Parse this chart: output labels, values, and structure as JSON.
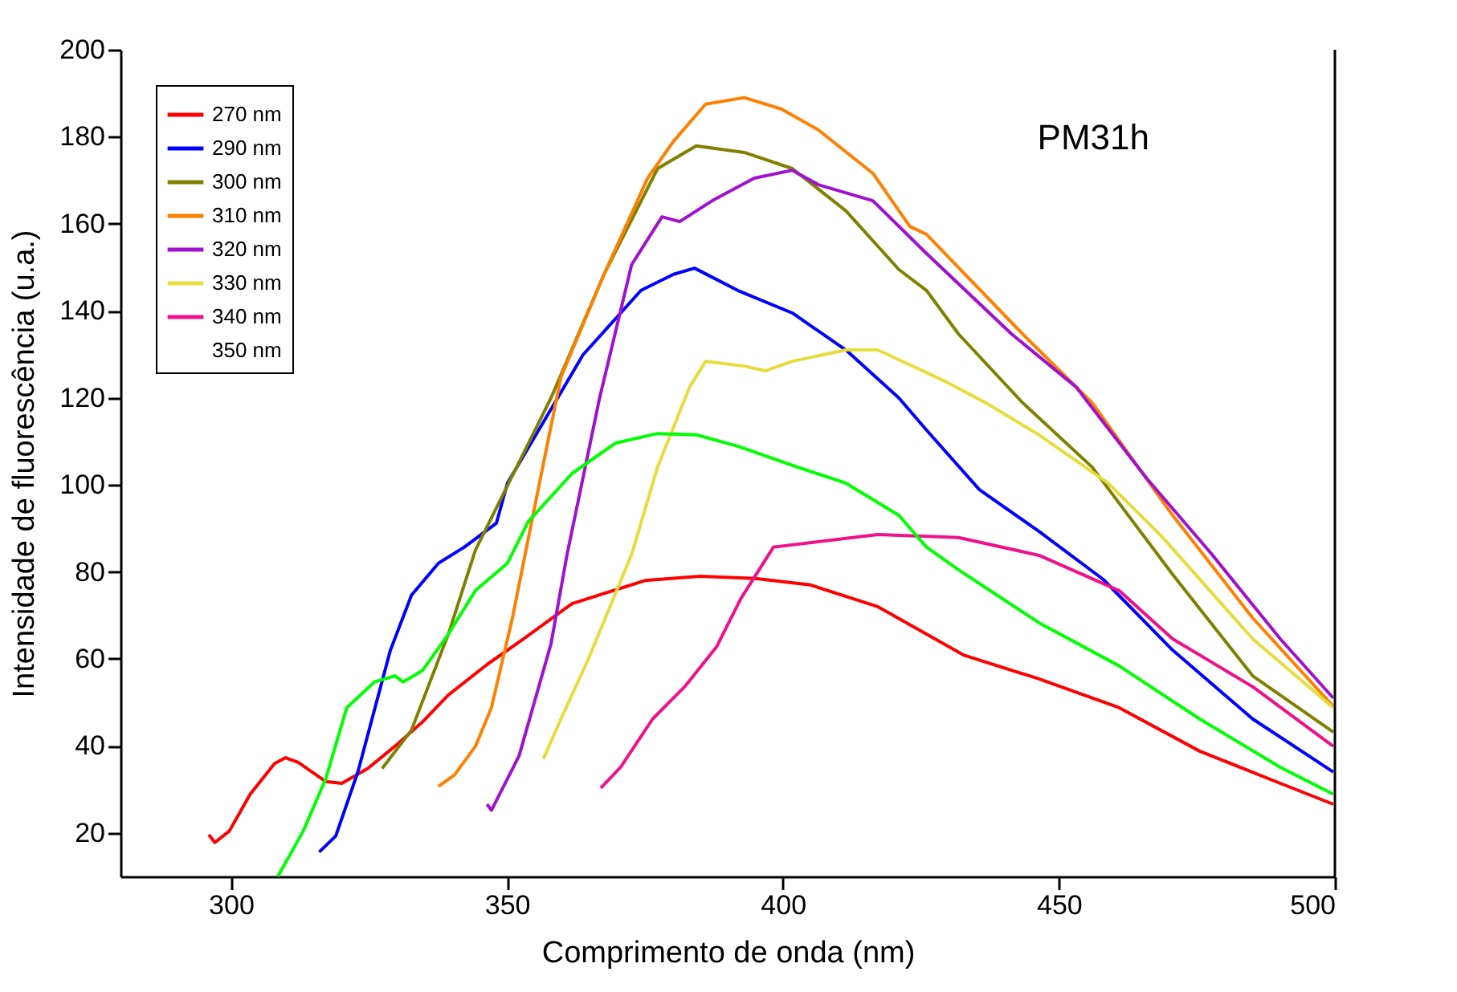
{
  "chart_data": {
    "type": "line",
    "xlabel": "Comprimento de onda (nm)",
    "ylabel": "Intensidade de fluorescência (u.a.)",
    "xlim": [
      280,
      500
    ],
    "xticks": [
      300,
      350,
      400,
      450,
      500
    ],
    "ylim": [
      10,
      200
    ],
    "yticks": [
      20,
      40,
      60,
      80,
      100,
      120,
      140,
      160,
      180,
      200
    ],
    "grid": false,
    "legend": "top left",
    "marker": "none",
    "line_style": "solid",
    "annotations": [
      "PM31h"
    ],
    "series": [
      {
        "name": "270 nm",
        "color": "#ff0000",
        "x": [
          296,
          297.1,
          299.7,
          303.5,
          307.9,
          309.9,
          312.2,
          317.2,
          320.1,
          324.8,
          329.7,
          334.7,
          339.4,
          346.4,
          353,
          361.8,
          375,
          385,
          395,
          405,
          417.2,
          432.7,
          446.4,
          460.9,
          475.5,
          490.1,
          499.7
        ],
        "values": [
          19.6,
          17.8,
          20.4,
          28.9,
          35.9,
          37.3,
          36.2,
          31.8,
          31.4,
          34.8,
          39.9,
          45.5,
          51.7,
          58.7,
          64.6,
          72.7,
          78,
          79,
          78.5,
          77,
          72,
          60.9,
          55.4,
          48.8,
          38.8,
          31.4,
          26.6
        ]
      },
      {
        "name": "290 nm",
        "color": "#0000ff",
        "x": [
          316,
          319,
          323,
          328.9,
          332.7,
          337.6,
          342.3,
          348.1,
          350.1,
          358,
          363.8,
          374.3,
          380.2,
          384,
          391.8,
          401.7,
          411.4,
          421,
          426,
          435.6,
          446.4,
          458,
          470.6,
          485.1,
          499.7
        ],
        "values": [
          15.6,
          19.3,
          34,
          62,
          74.6,
          82,
          85.7,
          91.2,
          100.4,
          117.4,
          129.9,
          144.7,
          148.4,
          149.8,
          144.7,
          139.5,
          131,
          120,
          112.6,
          98.9,
          89.3,
          78.3,
          62,
          46.2,
          34
        ]
      },
      {
        "name": "300 nm",
        "color": "#808000",
        "x": [
          327.4,
          332.7,
          339.4,
          344.3,
          358,
          367.6,
          377.3,
          384.3,
          393,
          401.7,
          411.4,
          421,
          426,
          431.8,
          443.4,
          456,
          470.6,
          485.1,
          499.7
        ],
        "values": [
          34.8,
          43.6,
          65.7,
          85,
          120,
          148.4,
          172.7,
          177.9,
          176.4,
          172.7,
          163,
          149.5,
          144.7,
          134.7,
          118.9,
          104.1,
          79.4,
          56.1,
          43.2
        ]
      },
      {
        "name": "310 nm",
        "color": "#ff8000",
        "x": [
          337.6,
          340.5,
          344.3,
          347.2,
          351,
          354.5,
          359.8,
          367.6,
          375.5,
          380.2,
          386,
          393,
          399.7,
          406.4,
          416.3,
          423,
          426,
          443.4,
          456,
          470.6,
          485.1,
          499.7
        ],
        "values": [
          30.7,
          33.3,
          39.9,
          48.8,
          69.4,
          91.6,
          124.8,
          148.4,
          170.5,
          179,
          187.5,
          189,
          186.4,
          181.6,
          171.6,
          159.4,
          157.6,
          134.7,
          118.9,
          93,
          69.4,
          49.1
        ]
      },
      {
        "name": "320 nm",
        "color": "#a010d0",
        "x": [
          346.4,
          347.2,
          352.2,
          358,
          360.9,
          366.8,
          372.6,
          378.1,
          381.3,
          387.2,
          394.8,
          401.7,
          406.4,
          416.3,
          426,
          441.4,
          453.1,
          465.9,
          477.6,
          490.1,
          499.7
        ],
        "values": [
          26.6,
          25.2,
          37.7,
          63.5,
          84,
          120,
          150.6,
          161.6,
          160.5,
          165.3,
          170.5,
          172.3,
          169,
          165.3,
          153.2,
          134.7,
          122.5,
          101.5,
          84.2,
          64.6,
          51
        ]
      },
      {
        "name": "330 nm",
        "color": "#e6dc3c",
        "x": [
          356.6,
          359.8,
          364.7,
          372.6,
          377.3,
          383.1,
          386,
          393,
          396.8,
          401.7,
          411.4,
          417.2,
          429.7,
          436.7,
          446.4,
          458.9,
          468.8,
          485.1,
          499.7
        ],
        "values": [
          37,
          46.2,
          59.8,
          84,
          104.1,
          122.5,
          128.4,
          127.3,
          126.2,
          128.4,
          131,
          131,
          123.6,
          118.9,
          111.5,
          100.4,
          87.9,
          64.6,
          48.8
        ]
      },
      {
        "name": "340 nm",
        "color": "#f0108a",
        "x": [
          367,
          370.6,
          376.4,
          382.2,
          388,
          392.4,
          398.3,
          405.5,
          417.2,
          431.8,
          446.4,
          460.9,
          470.6,
          485.1,
          499.7
        ],
        "values": [
          30.3,
          35.1,
          46.2,
          53.6,
          62.8,
          73.9,
          85.7,
          86.8,
          88.6,
          87.9,
          83.8,
          75.7,
          64.6,
          53.6,
          39.9
        ]
      },
      {
        "name": "350 nm"
      },
      {
        "color": "#00ff00",
        "x": [
          308.5,
          313.1,
          317.2,
          321,
          326,
          329.7,
          331.2,
          334.7,
          339.4,
          344.3,
          350.1,
          353.9,
          361.8,
          369.7,
          377.3,
          384.3,
          391.8,
          402.6,
          411.4,
          421,
          426,
          431.8,
          446.4,
          460.9,
          475.5,
          490.1,
          499.7
        ],
        "values": [
          10,
          20.4,
          32.5,
          48.8,
          54.7,
          56.1,
          54.7,
          57.3,
          65.7,
          75.7,
          82,
          91.6,
          102.6,
          109.6,
          111.8,
          111.5,
          108.9,
          104.1,
          100.4,
          93,
          85.7,
          80.5,
          68.3,
          58.4,
          46.2,
          35.1,
          28.9
        ]
      }
    ]
  }
}
